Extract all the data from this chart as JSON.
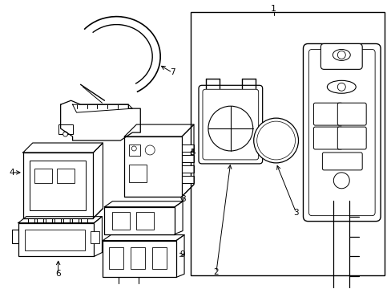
{
  "background_color": "#ffffff",
  "line_color": "#000000",
  "figsize": [
    4.89,
    3.6
  ],
  "dpi": 100
}
